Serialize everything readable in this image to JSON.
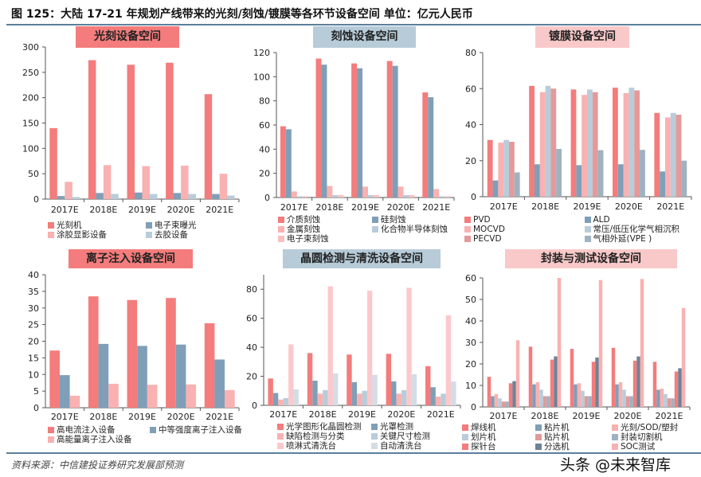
{
  "figure_title": "图 125：大陆 17-21 年规划产线带来的光刻/刻蚀/镀膜等各环节设备空间  单位：亿元人民币",
  "source": "资料来源：中信建投证券研究发展部预测",
  "watermark": "头条 @未来智库",
  "chart_data": [
    {
      "type": "bar",
      "title": "光刻设备空间",
      "title_bg": "#f47c7c",
      "categories": [
        "2017E",
        "2018E",
        "2019E",
        "2020E",
        "2021E"
      ],
      "ylim": [
        0,
        300
      ],
      "yticks": [
        0,
        50,
        100,
        150,
        200,
        250,
        300
      ],
      "legend_columns": 2,
      "series": [
        {
          "name": "光刻机",
          "color": "#f47c7c",
          "values": [
            140,
            274,
            265,
            269,
            207
          ]
        },
        {
          "name": "电子束曝光",
          "color": "#7f9fb8",
          "values": [
            6,
            12,
            13,
            12,
            10
          ]
        },
        {
          "name": "涂胶显影设备",
          "color": "#f9b1b1",
          "values": [
            34,
            67,
            65,
            66,
            50
          ]
        },
        {
          "name": "去胶设备",
          "color": "#b9ccda",
          "values": [
            4,
            10,
            10,
            10,
            7
          ]
        }
      ]
    },
    {
      "type": "bar",
      "title": "刻蚀设备空间",
      "title_bg": "#b7cbd8",
      "categories": [
        "2017E",
        "2018E",
        "2019E",
        "2020E",
        "2021E"
      ],
      "ylim": [
        0,
        120
      ],
      "yticks": [
        0,
        20,
        40,
        60,
        80,
        100,
        120
      ],
      "legend_columns": 2,
      "series": [
        {
          "name": "介质刻蚀",
          "color": "#f47c7c",
          "values": [
            59,
            115,
            111,
            113,
            87
          ]
        },
        {
          "name": "硅刻蚀",
          "color": "#7f9fb8",
          "values": [
            56.5,
            110,
            107,
            109,
            83
          ]
        },
        {
          "name": "金属刻蚀",
          "color": "#f9b1b1",
          "values": [
            5,
            9.5,
            9,
            9,
            7
          ]
        },
        {
          "name": "化合物半导体刻蚀",
          "color": "#b9ccda",
          "values": [
            1,
            2,
            2,
            2,
            1
          ]
        },
        {
          "name": "电子束刻蚀",
          "color": "#f9c0c0",
          "values": [
            1,
            2,
            2,
            2,
            1
          ]
        }
      ]
    },
    {
      "type": "bar",
      "title": "镀膜设备空间",
      "title_bg": "#f9c9c9",
      "categories": [
        "2017E",
        "2018E",
        "2019E",
        "2020E",
        "2021E"
      ],
      "ylim": [
        0,
        80
      ],
      "yticks": [
        0,
        20,
        40,
        60,
        80
      ],
      "legend_columns": 2,
      "series": [
        {
          "name": "PVD",
          "color": "#f47c7c",
          "values": [
            31.5,
            61.5,
            59.5,
            60.5,
            46.5
          ]
        },
        {
          "name": "ALD",
          "color": "#7f9fb8",
          "values": [
            9,
            18,
            17.5,
            18,
            14
          ]
        },
        {
          "name": "MOCVD",
          "color": "#f9b1b1",
          "values": [
            30,
            58,
            56.5,
            57.5,
            44
          ]
        },
        {
          "name": "常压/低压化学气相沉积",
          "color": "#b9ccda",
          "values": [
            31.5,
            61.5,
            59.5,
            60.5,
            46.5
          ]
        },
        {
          "name": "PECVD",
          "color": "#e49a9a",
          "values": [
            30.5,
            60,
            58,
            59,
            45.5
          ]
        },
        {
          "name": "气相外延(VPE )",
          "color": "#9fb2c0",
          "values": [
            13.5,
            26.5,
            25.8,
            26,
            20
          ]
        }
      ]
    },
    {
      "type": "bar",
      "title": "离子注入设备空间",
      "title_bg": "#f47c7c",
      "categories": [
        "2017E",
        "2018E",
        "2019E",
        "2020E",
        "2021E"
      ],
      "ylim": [
        0,
        40
      ],
      "yticks": [
        0,
        5,
        10,
        15,
        20,
        25,
        30,
        35,
        40
      ],
      "legend_columns": 2,
      "series": [
        {
          "name": "高电流注入设备",
          "color": "#f47c7c",
          "values": [
            17.2,
            33.5,
            32.4,
            33,
            25.4
          ]
        },
        {
          "name": "中等强度离子注入设备",
          "color": "#7f9fb8",
          "values": [
            9.8,
            19.2,
            18.6,
            19,
            14.5
          ]
        },
        {
          "name": "高能量离子注入设备",
          "color": "#f9b1b1",
          "values": [
            3.6,
            7.2,
            6.9,
            7,
            5.3
          ]
        }
      ]
    },
    {
      "type": "bar",
      "title": "晶圆检测与清洗设备空间",
      "title_bg": "#b7cbd8",
      "categories": [
        "2017E",
        "2018E",
        "2019E",
        "2020E",
        "2021E"
      ],
      "ylim": [
        0,
        90
      ],
      "yticks": [
        0,
        20,
        40,
        60,
        80
      ],
      "legend_columns": 2,
      "series": [
        {
          "name": "光学图形化晶圆检测",
          "color": "#f47c7c",
          "values": [
            18.5,
            36,
            35,
            35.5,
            27
          ]
        },
        {
          "name": "光罩检测",
          "color": "#7f9fb8",
          "values": [
            8.5,
            17,
            16,
            16.5,
            12.5
          ]
        },
        {
          "name": "缺陷检测与分类",
          "color": "#f9b1b1",
          "values": [
            4,
            8,
            8,
            8,
            6
          ]
        },
        {
          "name": "关键尺寸检测",
          "color": "#b9ccda",
          "values": [
            5,
            10.5,
            10,
            10.5,
            8
          ]
        },
        {
          "name": "喷淋式清洗台",
          "color": "#fbc9cc",
          "values": [
            42,
            82,
            79,
            81,
            62
          ]
        },
        {
          "name": "自动清洗台",
          "color": "#d4dde6",
          "values": [
            11,
            22,
            21,
            21.5,
            16.5
          ]
        }
      ]
    },
    {
      "type": "bar",
      "title": "封装与测试设备空间",
      "title_bg": "#f9c9c9",
      "categories": [
        "2017E",
        "2018E",
        "2019E",
        "2020E",
        "2021E"
      ],
      "ylim": [
        0,
        60
      ],
      "yticks": [
        0,
        10,
        20,
        30,
        40,
        50,
        60
      ],
      "legend_columns": 3,
      "series": [
        {
          "name": "焊线机",
          "color": "#f47c7c",
          "values": [
            14,
            28,
            27,
            27.5,
            21
          ]
        },
        {
          "name": "粘片机",
          "color": "#7f9fb8",
          "values": [
            5,
            10.5,
            10.5,
            10.5,
            8
          ]
        },
        {
          "name": "光刻/SOD/塑封",
          "color": "#f9b1b1",
          "values": [
            6,
            11.5,
            11,
            11.5,
            8.5
          ]
        },
        {
          "name": "划片机",
          "color": "#b9ccda",
          "values": [
            4,
            8,
            7.5,
            8,
            6
          ]
        },
        {
          "name": "贴片机",
          "color": "#e09a9a",
          "values": [
            2.5,
            5,
            5,
            5,
            4
          ]
        },
        {
          "name": "封装切割机",
          "color": "#9fb2c0",
          "values": [
            2.5,
            5,
            5,
            5,
            4
          ]
        },
        {
          "name": "探针台",
          "color": "#f47c7c",
          "values": [
            11,
            22,
            21,
            21.5,
            16.5
          ]
        },
        {
          "name": "分选机",
          "color": "#6f8296",
          "values": [
            12,
            23.5,
            23,
            23.5,
            18
          ]
        },
        {
          "name": "SOC测试",
          "color": "#f9b1b1",
          "values": [
            31,
            60,
            59,
            59.5,
            46
          ]
        }
      ]
    }
  ]
}
